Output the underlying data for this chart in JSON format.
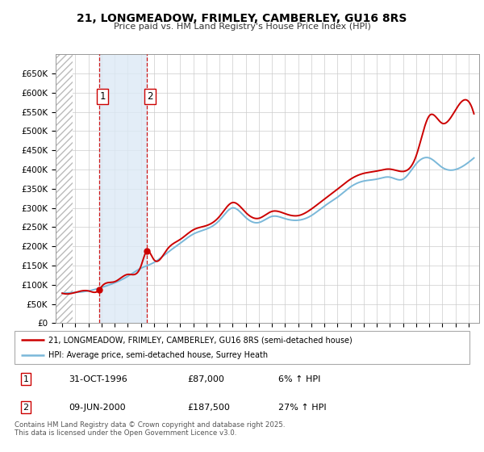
{
  "title_line1": "21, LONGMEADOW, FRIMLEY, CAMBERLEY, GU16 8RS",
  "title_line2": "Price paid vs. HM Land Registry's House Price Index (HPI)",
  "ylim": [
    0,
    700000
  ],
  "yticks": [
    0,
    50000,
    100000,
    150000,
    200000,
    250000,
    300000,
    350000,
    400000,
    450000,
    500000,
    550000,
    600000,
    650000
  ],
  "ytick_labels": [
    "£0",
    "£50K",
    "£100K",
    "£150K",
    "£200K",
    "£250K",
    "£300K",
    "£350K",
    "£400K",
    "£450K",
    "£500K",
    "£550K",
    "£600K",
    "£650K"
  ],
  "xlim_start": 1993.5,
  "xlim_end": 2025.8,
  "sale1_date": 1996.83,
  "sale1_price": 87000,
  "sale1_label": "1",
  "sale2_date": 2000.44,
  "sale2_price": 187500,
  "sale2_label": "2",
  "hpi_color": "#7ab8d9",
  "price_color": "#cc0000",
  "shaded_region_color": "#dce9f5",
  "grid_color": "#cccccc",
  "legend_line1": "21, LONGMEADOW, FRIMLEY, CAMBERLEY, GU16 8RS (semi-detached house)",
  "legend_line2": "HPI: Average price, semi-detached house, Surrey Heath",
  "annotation1_date": "31-OCT-1996",
  "annotation1_price": "£87,000",
  "annotation1_hpi": "6% ↑ HPI",
  "annotation2_date": "09-JUN-2000",
  "annotation2_price": "£187,500",
  "annotation2_hpi": "27% ↑ HPI",
  "footer": "Contains HM Land Registry data © Crown copyright and database right 2025.\nThis data is licensed under the Open Government Licence v3.0.",
  "hpi_years": [
    1994,
    1995,
    1996,
    1997,
    1998,
    1999,
    2000,
    2001,
    2002,
    2003,
    2004,
    2005,
    2006,
    2007,
    2008,
    2009,
    2010,
    2011,
    2012,
    2013,
    2014,
    2015,
    2016,
    2017,
    2018,
    2019,
    2020,
    2021,
    2022,
    2023,
    2024,
    2025.4
  ],
  "hpi_prices": [
    78000,
    80000,
    84000,
    93000,
    105000,
    122000,
    143000,
    158000,
    183000,
    208000,
    232000,
    245000,
    268000,
    300000,
    275000,
    262000,
    278000,
    272000,
    268000,
    280000,
    305000,
    328000,
    355000,
    370000,
    375000,
    380000,
    375000,
    415000,
    430000,
    405000,
    400000,
    430000
  ],
  "prop_years": [
    1994,
    1995,
    1996,
    1996.83,
    1997,
    1998,
    1999,
    2000,
    2000.44,
    2001,
    2002,
    2003,
    2004,
    2005,
    2006,
    2007,
    2008,
    2009,
    2010,
    2011,
    2012,
    2013,
    2014,
    2015,
    2016,
    2017,
    2018,
    2019,
    2020,
    2021,
    2022,
    2023,
    2024,
    2025.4
  ],
  "prop_prices": [
    78000,
    80000,
    84000,
    87000,
    95000,
    108000,
    127000,
    148000,
    187500,
    165000,
    192000,
    218000,
    243000,
    254000,
    278000,
    314000,
    288000,
    273000,
    291000,
    285000,
    280000,
    297000,
    323000,
    349000,
    375000,
    390000,
    396000,
    401000,
    395000,
    436000,
    540000,
    520000,
    555000,
    545000
  ]
}
